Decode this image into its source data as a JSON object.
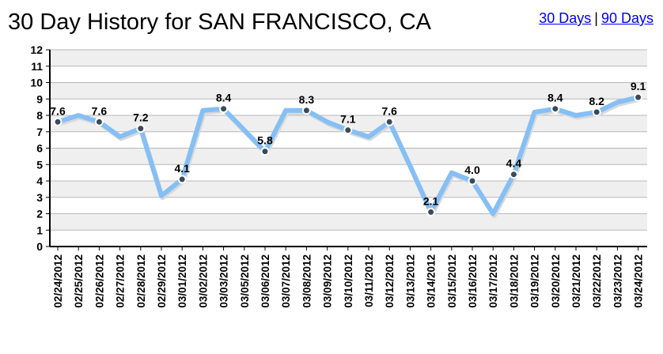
{
  "header": {
    "title": "30 Day History for SAN FRANCISCO, CA",
    "link_30": "30 Days",
    "separator": "|",
    "link_90": "90 Days",
    "link_color": "#0000ee"
  },
  "colors": {
    "line": "#85bff5",
    "band": "#efefef",
    "grid": "#b8b8b8",
    "marker": "#394a5c"
  },
  "chart_data": {
    "type": "line",
    "title": "30 Day History for SAN FRANCISCO, CA",
    "xlabel": "",
    "ylabel": "",
    "ylim": [
      0,
      12
    ],
    "yticks": [
      0,
      1,
      2,
      3,
      4,
      5,
      6,
      7,
      8,
      9,
      10,
      11,
      12
    ],
    "grid": true,
    "legend": "none",
    "categories": [
      "02/24/2012",
      "02/25/2012",
      "02/26/2012",
      "02/27/2012",
      "02/28/2012",
      "02/29/2012",
      "03/01/2012",
      "03/02/2012",
      "03/03/2012",
      "03/05/2012",
      "03/06/2012",
      "03/07/2012",
      "03/08/2012",
      "03/09/2012",
      "03/10/2012",
      "03/11/2012",
      "03/12/2012",
      "03/13/2012",
      "03/14/2012",
      "03/15/2012",
      "03/16/2012",
      "03/17/2012",
      "03/18/2012",
      "03/19/2012",
      "03/20/2012",
      "03/21/2012",
      "03/22/2012",
      "03/23/2012",
      "03/24/2012"
    ],
    "series": [
      {
        "values": [
          7.6,
          8.0,
          7.6,
          6.7,
          7.2,
          3.1,
          4.1,
          8.3,
          8.4,
          7.1,
          5.8,
          8.3,
          8.3,
          7.6,
          7.1,
          6.7,
          7.6,
          4.9,
          2.1,
          4.5,
          4.0,
          2.0,
          4.4,
          8.2,
          8.4,
          8.0,
          8.2,
          8.8,
          9.1
        ]
      }
    ],
    "labeled_points": [
      {
        "index": 0,
        "label": "7.6"
      },
      {
        "index": 2,
        "label": "7.6"
      },
      {
        "index": 4,
        "label": "7.2"
      },
      {
        "index": 6,
        "label": "4.1"
      },
      {
        "index": 8,
        "label": "8.4"
      },
      {
        "index": 10,
        "label": "5.8"
      },
      {
        "index": 12,
        "label": "8.3"
      },
      {
        "index": 14,
        "label": "7.1"
      },
      {
        "index": 16,
        "label": "7.6"
      },
      {
        "index": 18,
        "label": "2.1"
      },
      {
        "index": 20,
        "label": "4.0"
      },
      {
        "index": 22,
        "label": "4.4"
      },
      {
        "index": 24,
        "label": "8.4"
      },
      {
        "index": 26,
        "label": "8.2"
      },
      {
        "index": 28,
        "label": "9.1"
      }
    ]
  }
}
